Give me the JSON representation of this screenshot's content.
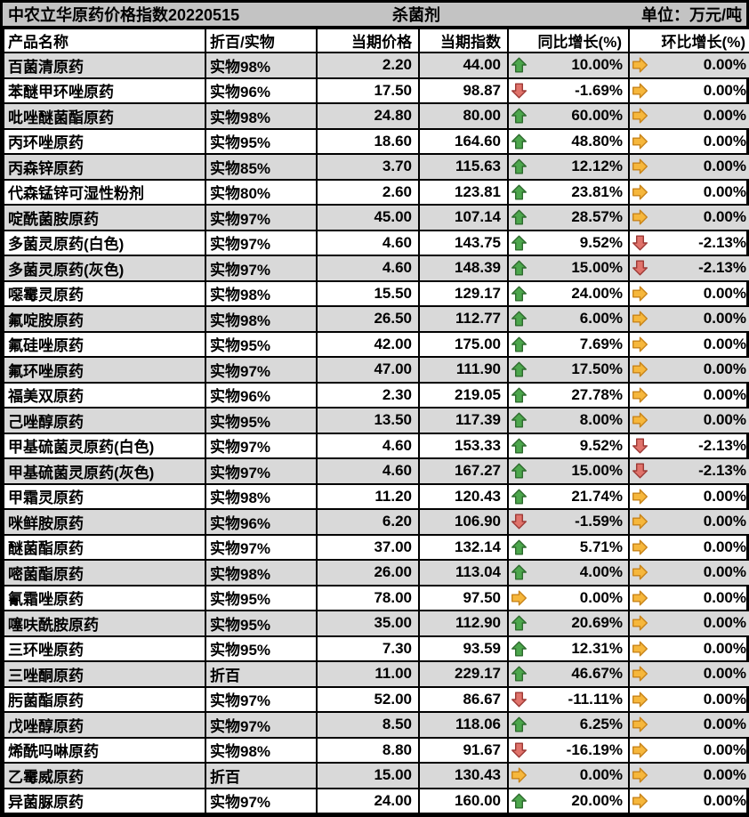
{
  "title_bar": {
    "title": "中农立华原药价格指数20220515",
    "category": "杀菌剂",
    "unit": "单位：万元/吨"
  },
  "columns": [
    "产品名称",
    "折百/实物",
    "当期价格",
    "当期指数",
    "同比增长(%)",
    "环比增长(%)"
  ],
  "icons": {
    "up": "up-arrow-icon",
    "down": "down-arrow-icon",
    "flat": "right-arrow-icon"
  },
  "colors": {
    "up_fill": "#4CA64C",
    "up_stroke": "#2E6B2E",
    "down_fill": "#E0736B",
    "down_stroke": "#9E3A36",
    "flat_fill": "#F6B73C",
    "flat_stroke": "#C8841A",
    "stripe_bg": "#D9D9D9",
    "title_bg": "#C3C3C3",
    "grid": "#000000"
  },
  "rows": [
    {
      "name": "百菌清原药",
      "basis": "实物98%",
      "price": "2.20",
      "index": "44.00",
      "yoy_icon": "up",
      "yoy": "10.00%",
      "mom_icon": "flat",
      "mom": "0.00%"
    },
    {
      "name": "苯醚甲环唑原药",
      "basis": "实物96%",
      "price": "17.50",
      "index": "98.87",
      "yoy_icon": "down",
      "yoy": "-1.69%",
      "mom_icon": "flat",
      "mom": "0.00%"
    },
    {
      "name": "吡唑醚菌酯原药",
      "basis": "实物98%",
      "price": "24.80",
      "index": "80.00",
      "yoy_icon": "up",
      "yoy": "60.00%",
      "mom_icon": "flat",
      "mom": "0.00%"
    },
    {
      "name": "丙环唑原药",
      "basis": "实物95%",
      "price": "18.60",
      "index": "164.60",
      "yoy_icon": "up",
      "yoy": "48.80%",
      "mom_icon": "flat",
      "mom": "0.00%"
    },
    {
      "name": "丙森锌原药",
      "basis": "实物85%",
      "price": "3.70",
      "index": "115.63",
      "yoy_icon": "up",
      "yoy": "12.12%",
      "mom_icon": "flat",
      "mom": "0.00%"
    },
    {
      "name": "代森锰锌可湿性粉剂",
      "basis": "实物80%",
      "price": "2.60",
      "index": "123.81",
      "yoy_icon": "up",
      "yoy": "23.81%",
      "mom_icon": "flat",
      "mom": "0.00%"
    },
    {
      "name": "啶酰菌胺原药",
      "basis": "实物97%",
      "price": "45.00",
      "index": "107.14",
      "yoy_icon": "up",
      "yoy": "28.57%",
      "mom_icon": "flat",
      "mom": "0.00%"
    },
    {
      "name": "多菌灵原药(白色)",
      "basis": "实物97%",
      "price": "4.60",
      "index": "143.75",
      "yoy_icon": "up",
      "yoy": "9.52%",
      "mom_icon": "down",
      "mom": "-2.13%"
    },
    {
      "name": "多菌灵原药(灰色)",
      "basis": "实物97%",
      "price": "4.60",
      "index": "148.39",
      "yoy_icon": "up",
      "yoy": "15.00%",
      "mom_icon": "down",
      "mom": "-2.13%"
    },
    {
      "name": "噁霉灵原药",
      "basis": "实物98%",
      "price": "15.50",
      "index": "129.17",
      "yoy_icon": "up",
      "yoy": "24.00%",
      "mom_icon": "flat",
      "mom": "0.00%"
    },
    {
      "name": "氟啶胺原药",
      "basis": "实物98%",
      "price": "26.50",
      "index": "112.77",
      "yoy_icon": "up",
      "yoy": "6.00%",
      "mom_icon": "flat",
      "mom": "0.00%"
    },
    {
      "name": "氟硅唑原药",
      "basis": "实物95%",
      "price": "42.00",
      "index": "175.00",
      "yoy_icon": "up",
      "yoy": "7.69%",
      "mom_icon": "flat",
      "mom": "0.00%"
    },
    {
      "name": "氟环唑原药",
      "basis": "实物97%",
      "price": "47.00",
      "index": "111.90",
      "yoy_icon": "up",
      "yoy": "17.50%",
      "mom_icon": "flat",
      "mom": "0.00%"
    },
    {
      "name": "福美双原药",
      "basis": "实物96%",
      "price": "2.30",
      "index": "219.05",
      "yoy_icon": "up",
      "yoy": "27.78%",
      "mom_icon": "flat",
      "mom": "0.00%"
    },
    {
      "name": "己唑醇原药",
      "basis": "实物95%",
      "price": "13.50",
      "index": "117.39",
      "yoy_icon": "up",
      "yoy": "8.00%",
      "mom_icon": "flat",
      "mom": "0.00%"
    },
    {
      "name": "甲基硫菌灵原药(白色)",
      "basis": "实物97%",
      "price": "4.60",
      "index": "153.33",
      "yoy_icon": "up",
      "yoy": "9.52%",
      "mom_icon": "down",
      "mom": "-2.13%"
    },
    {
      "name": "甲基硫菌灵原药(灰色)",
      "basis": "实物97%",
      "price": "4.60",
      "index": "167.27",
      "yoy_icon": "up",
      "yoy": "15.00%",
      "mom_icon": "down",
      "mom": "-2.13%"
    },
    {
      "name": "甲霜灵原药",
      "basis": "实物98%",
      "price": "11.20",
      "index": "120.43",
      "yoy_icon": "up",
      "yoy": "21.74%",
      "mom_icon": "flat",
      "mom": "0.00%"
    },
    {
      "name": "咪鲜胺原药",
      "basis": "实物96%",
      "price": "6.20",
      "index": "106.90",
      "yoy_icon": "down",
      "yoy": "-1.59%",
      "mom_icon": "flat",
      "mom": "0.00%"
    },
    {
      "name": "醚菌酯原药",
      "basis": "实物97%",
      "price": "37.00",
      "index": "132.14",
      "yoy_icon": "up",
      "yoy": "5.71%",
      "mom_icon": "flat",
      "mom": "0.00%"
    },
    {
      "name": "嘧菌酯原药",
      "basis": "实物98%",
      "price": "26.00",
      "index": "113.04",
      "yoy_icon": "up",
      "yoy": "4.00%",
      "mom_icon": "flat",
      "mom": "0.00%"
    },
    {
      "name": "氰霜唑原药",
      "basis": "实物95%",
      "price": "78.00",
      "index": "97.50",
      "yoy_icon": "flat",
      "yoy": "0.00%",
      "mom_icon": "flat",
      "mom": "0.00%"
    },
    {
      "name": "噻呋酰胺原药",
      "basis": "实物95%",
      "price": "35.00",
      "index": "112.90",
      "yoy_icon": "up",
      "yoy": "20.69%",
      "mom_icon": "flat",
      "mom": "0.00%"
    },
    {
      "name": "三环唑原药",
      "basis": "实物95%",
      "price": "7.30",
      "index": "93.59",
      "yoy_icon": "up",
      "yoy": "12.31%",
      "mom_icon": "flat",
      "mom": "0.00%"
    },
    {
      "name": "三唑酮原药",
      "basis": "折百",
      "price": "11.00",
      "index": "229.17",
      "yoy_icon": "up",
      "yoy": "46.67%",
      "mom_icon": "flat",
      "mom": "0.00%"
    },
    {
      "name": "肟菌酯原药",
      "basis": "实物97%",
      "price": "52.00",
      "index": "86.67",
      "yoy_icon": "down",
      "yoy": "-11.11%",
      "mom_icon": "flat",
      "mom": "0.00%"
    },
    {
      "name": "戊唑醇原药",
      "basis": "实物97%",
      "price": "8.50",
      "index": "118.06",
      "yoy_icon": "up",
      "yoy": "6.25%",
      "mom_icon": "flat",
      "mom": "0.00%"
    },
    {
      "name": "烯酰吗啉原药",
      "basis": "实物98%",
      "price": "8.80",
      "index": "91.67",
      "yoy_icon": "down",
      "yoy": "-16.19%",
      "mom_icon": "flat",
      "mom": "0.00%"
    },
    {
      "name": "乙霉威原药",
      "basis": "折百",
      "price": "15.00",
      "index": "130.43",
      "yoy_icon": "flat",
      "yoy": "0.00%",
      "mom_icon": "flat",
      "mom": "0.00%"
    },
    {
      "name": "异菌脲原药",
      "basis": "实物97%",
      "price": "24.00",
      "index": "160.00",
      "yoy_icon": "up",
      "yoy": "20.00%",
      "mom_icon": "flat",
      "mom": "0.00%"
    }
  ]
}
